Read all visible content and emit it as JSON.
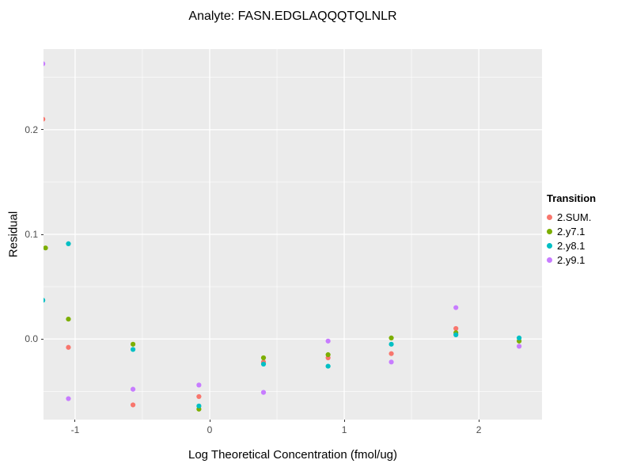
{
  "chart_data": {
    "type": "scatter",
    "title": "Analyte: FASN.EDGLAQQQTQLNLR",
    "xlabel": "Log Theoretical Concentration (fmol/ug)",
    "ylabel": "Residual",
    "xlim": [
      -1.235,
      2.47
    ],
    "ylim": [
      -0.077,
      0.277
    ],
    "xticks": [
      -1,
      0,
      1,
      2
    ],
    "xtick_labels": [
      "-1",
      "0",
      "1",
      "2"
    ],
    "yticks": [
      0.0,
      0.1,
      0.2
    ],
    "ytick_labels": [
      "0.0",
      "0.1",
      "0.2"
    ],
    "x_minor": [
      -0.5,
      0.5,
      1.5
    ],
    "y_minor": [
      -0.05,
      0.05,
      0.15,
      0.25
    ],
    "grid": true,
    "panel_bg": "#EBEBEB",
    "grid_color": "#FFFFFF",
    "legend": {
      "title": "Transition",
      "position": "right"
    },
    "series": [
      {
        "name": "2.SUM.",
        "color": "#F8766D",
        "points": [
          [
            -1.24,
            0.21
          ],
          [
            -1.05,
            -0.008
          ],
          [
            -0.57,
            -0.063
          ],
          [
            -0.08,
            -0.055
          ],
          [
            0.4,
            -0.022
          ],
          [
            0.88,
            -0.018
          ],
          [
            1.35,
            -0.014
          ],
          [
            1.83,
            0.01
          ]
        ]
      },
      {
        "name": "2.y7.1",
        "color": "#7CAE00",
        "points": [
          [
            -1.22,
            0.087
          ],
          [
            -1.05,
            0.019
          ],
          [
            -0.57,
            -0.005
          ],
          [
            -0.08,
            -0.067
          ],
          [
            0.4,
            -0.018
          ],
          [
            0.88,
            -0.015
          ],
          [
            1.35,
            0.001
          ],
          [
            1.83,
            0.006
          ],
          [
            2.3,
            -0.002
          ]
        ]
      },
      {
        "name": "2.y8.1",
        "color": "#00BFC4",
        "points": [
          [
            -1.24,
            0.037
          ],
          [
            -1.05,
            0.091
          ],
          [
            -0.57,
            -0.01
          ],
          [
            -0.08,
            -0.064
          ],
          [
            0.4,
            -0.024
          ],
          [
            0.88,
            -0.026
          ],
          [
            1.35,
            -0.005
          ],
          [
            1.83,
            0.004
          ],
          [
            2.3,
            0.001
          ]
        ]
      },
      {
        "name": "2.y9.1",
        "color": "#C77CFF",
        "points": [
          [
            -1.24,
            0.263
          ],
          [
            -1.05,
            -0.057
          ],
          [
            -0.57,
            -0.048
          ],
          [
            -0.08,
            -0.044
          ],
          [
            0.4,
            -0.051
          ],
          [
            0.88,
            -0.002
          ],
          [
            1.35,
            -0.022
          ],
          [
            1.83,
            0.03
          ],
          [
            2.3,
            -0.007
          ]
        ]
      }
    ]
  }
}
